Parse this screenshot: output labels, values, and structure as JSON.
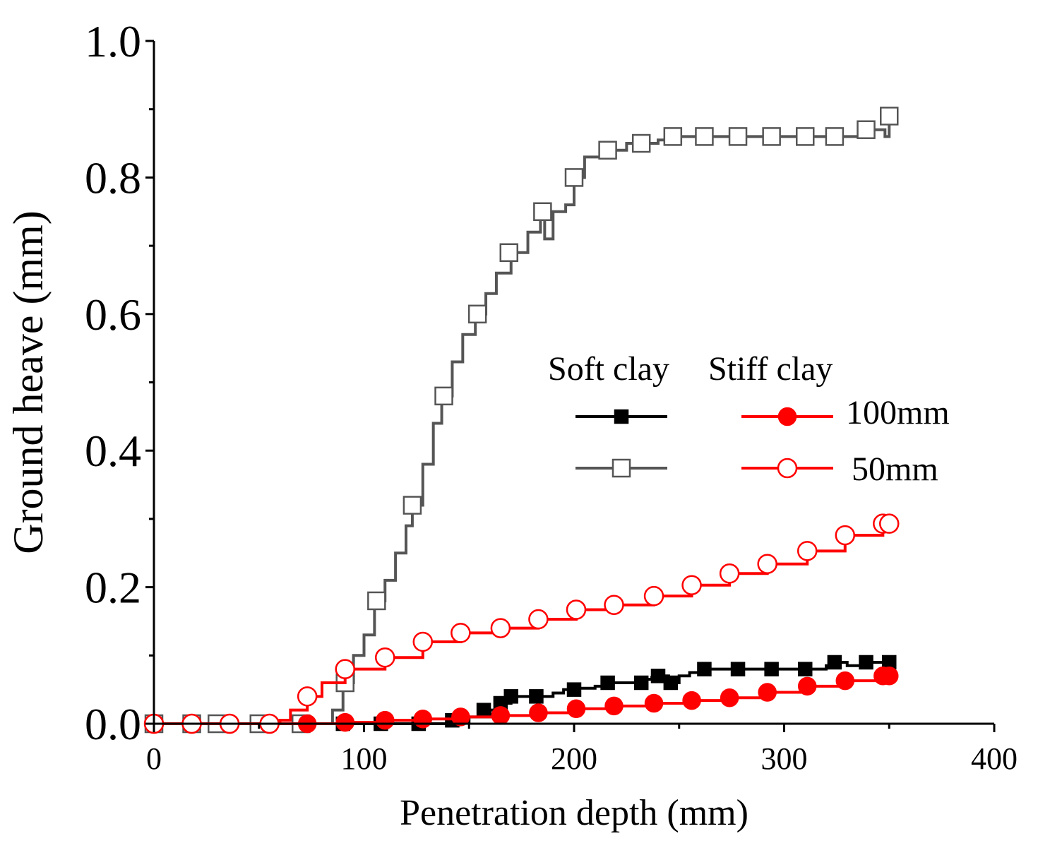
{
  "chart_data": {
    "type": "line",
    "title": "",
    "xlabel": "Penetration depth (mm)",
    "ylabel": "Ground heave (mm)",
    "xlim": [
      0,
      400
    ],
    "ylim": [
      0.0,
      1.0
    ],
    "xticks": [
      0,
      100,
      200,
      300,
      400
    ],
    "xtick_labels": [
      "0",
      "100",
      "200",
      "300",
      "400"
    ],
    "yticks": [
      0.0,
      0.2,
      0.4,
      0.6,
      0.8,
      1.0
    ],
    "ytick_labels": [
      "0.0",
      "0.2",
      "0.4",
      "0.6",
      "0.8",
      "1.0"
    ],
    "grid": false,
    "legend": {
      "placement": "center-right",
      "column_headers": [
        "Soft clay",
        "Stiff clay"
      ],
      "row_labels": [
        "100mm",
        "50mm"
      ]
    },
    "series": [
      {
        "name": "Soft clay 100mm",
        "color": "#000000",
        "marker": "square-filled",
        "x": [
          0,
          18,
          36,
          55,
          72,
          90,
          108,
          126,
          140,
          150,
          160,
          165,
          170,
          180,
          190,
          195,
          200,
          210,
          215,
          220,
          230,
          233,
          237,
          241,
          245,
          250,
          255,
          262,
          270,
          278,
          290,
          300,
          310,
          320,
          324,
          330,
          338,
          341,
          345,
          350
        ],
        "y": [
          0.0,
          0.0,
          0.0,
          0.0,
          0.0,
          0.0,
          0.0,
          0.0,
          0.002,
          0.01,
          0.02,
          0.03,
          0.04,
          0.04,
          0.045,
          0.05,
          0.052,
          0.055,
          0.06,
          0.06,
          0.06,
          0.065,
          0.068,
          0.07,
          0.06,
          0.07,
          0.075,
          0.08,
          0.08,
          0.08,
          0.08,
          0.08,
          0.08,
          0.085,
          0.09,
          0.085,
          0.09,
          0.09,
          0.09,
          0.09
        ],
        "marker_x": [
          0,
          18,
          36,
          55,
          72,
          90,
          108,
          126,
          142,
          157,
          165,
          170,
          182,
          200,
          216,
          232,
          240,
          246,
          262,
          278,
          294,
          310,
          324,
          339,
          350
        ],
        "marker_y": [
          0.0,
          0.0,
          0.0,
          0.0,
          0.0,
          0.0,
          0.0,
          0.0,
          0.005,
          0.02,
          0.03,
          0.04,
          0.04,
          0.05,
          0.06,
          0.06,
          0.07,
          0.06,
          0.08,
          0.08,
          0.08,
          0.08,
          0.09,
          0.09,
          0.09
        ]
      },
      {
        "name": "Soft clay 50mm",
        "color": "#555555",
        "marker": "square-open",
        "x": [
          0,
          18,
          30,
          50,
          70,
          82,
          85,
          90,
          95,
          100,
          105,
          110,
          115,
          120,
          123,
          128,
          133,
          137,
          142,
          147,
          153,
          158,
          163,
          170,
          178,
          184,
          186,
          190,
          196,
          200,
          205,
          215,
          225,
          232,
          240,
          248,
          262,
          278,
          292,
          310,
          324,
          335,
          342,
          348,
          350
        ],
        "y": [
          0.0,
          0.0,
          0.0,
          0.0,
          0.0,
          0.0,
          0.02,
          0.06,
          0.1,
          0.13,
          0.18,
          0.21,
          0.25,
          0.29,
          0.32,
          0.38,
          0.44,
          0.48,
          0.53,
          0.57,
          0.6,
          0.63,
          0.66,
          0.69,
          0.72,
          0.74,
          0.71,
          0.75,
          0.76,
          0.8,
          0.83,
          0.84,
          0.85,
          0.85,
          0.855,
          0.86,
          0.86,
          0.86,
          0.86,
          0.86,
          0.86,
          0.86,
          0.87,
          0.86,
          0.89
        ],
        "marker_x": [
          0,
          18,
          30,
          50,
          70,
          91,
          106,
          123,
          138,
          154,
          169,
          185,
          200,
          216,
          232,
          247,
          262,
          278,
          294,
          310,
          324,
          339,
          350
        ],
        "marker_y": [
          0.0,
          0.0,
          0.0,
          0.0,
          0.0,
          0.06,
          0.18,
          0.32,
          0.48,
          0.6,
          0.69,
          0.75,
          0.8,
          0.84,
          0.85,
          0.86,
          0.86,
          0.86,
          0.86,
          0.86,
          0.86,
          0.87,
          0.89
        ]
      },
      {
        "name": "Stiff clay 100mm",
        "color": "#ff0000",
        "marker": "circle-filled",
        "x": [
          0,
          18,
          36,
          55,
          73,
          91,
          110,
          128,
          146,
          165,
          183,
          201,
          219,
          238,
          256,
          274,
          292,
          311,
          329,
          347,
          350
        ],
        "y": [
          0.0,
          0.0,
          0.0,
          0.0,
          0.0,
          0.002,
          0.005,
          0.007,
          0.01,
          0.012,
          0.016,
          0.022,
          0.026,
          0.03,
          0.034,
          0.038,
          0.046,
          0.055,
          0.063,
          0.07,
          0.07
        ],
        "marker_x": [
          0,
          18,
          36,
          55,
          73,
          91,
          110,
          128,
          146,
          165,
          183,
          201,
          219,
          238,
          256,
          274,
          292,
          311,
          329,
          347,
          350
        ],
        "marker_y": [
          0.0,
          0.0,
          0.0,
          0.0,
          0.0,
          0.002,
          0.005,
          0.007,
          0.01,
          0.012,
          0.016,
          0.022,
          0.026,
          0.03,
          0.034,
          0.038,
          0.046,
          0.055,
          0.063,
          0.07,
          0.07
        ]
      },
      {
        "name": "Stiff clay 50mm",
        "color": "#ff0000",
        "marker": "circle-open",
        "x": [
          0,
          18,
          36,
          55,
          60,
          65,
          73,
          80,
          91,
          110,
          128,
          146,
          165,
          183,
          201,
          219,
          238,
          256,
          274,
          292,
          311,
          329,
          347,
          350
        ],
        "y": [
          0.0,
          0.0,
          0.0,
          0.0,
          0.005,
          0.02,
          0.04,
          0.06,
          0.08,
          0.097,
          0.12,
          0.133,
          0.14,
          0.153,
          0.167,
          0.174,
          0.187,
          0.203,
          0.22,
          0.234,
          0.253,
          0.276,
          0.293,
          0.293
        ],
        "marker_x": [
          0,
          18,
          36,
          55,
          73,
          91,
          110,
          128,
          146,
          165,
          183,
          201,
          219,
          238,
          256,
          274,
          292,
          311,
          329,
          347,
          350
        ],
        "marker_y": [
          0.0,
          0.0,
          0.0,
          0.0,
          0.04,
          0.08,
          0.097,
          0.12,
          0.133,
          0.14,
          0.153,
          0.167,
          0.174,
          0.187,
          0.203,
          0.22,
          0.234,
          0.253,
          0.276,
          0.293,
          0.293
        ]
      }
    ]
  }
}
